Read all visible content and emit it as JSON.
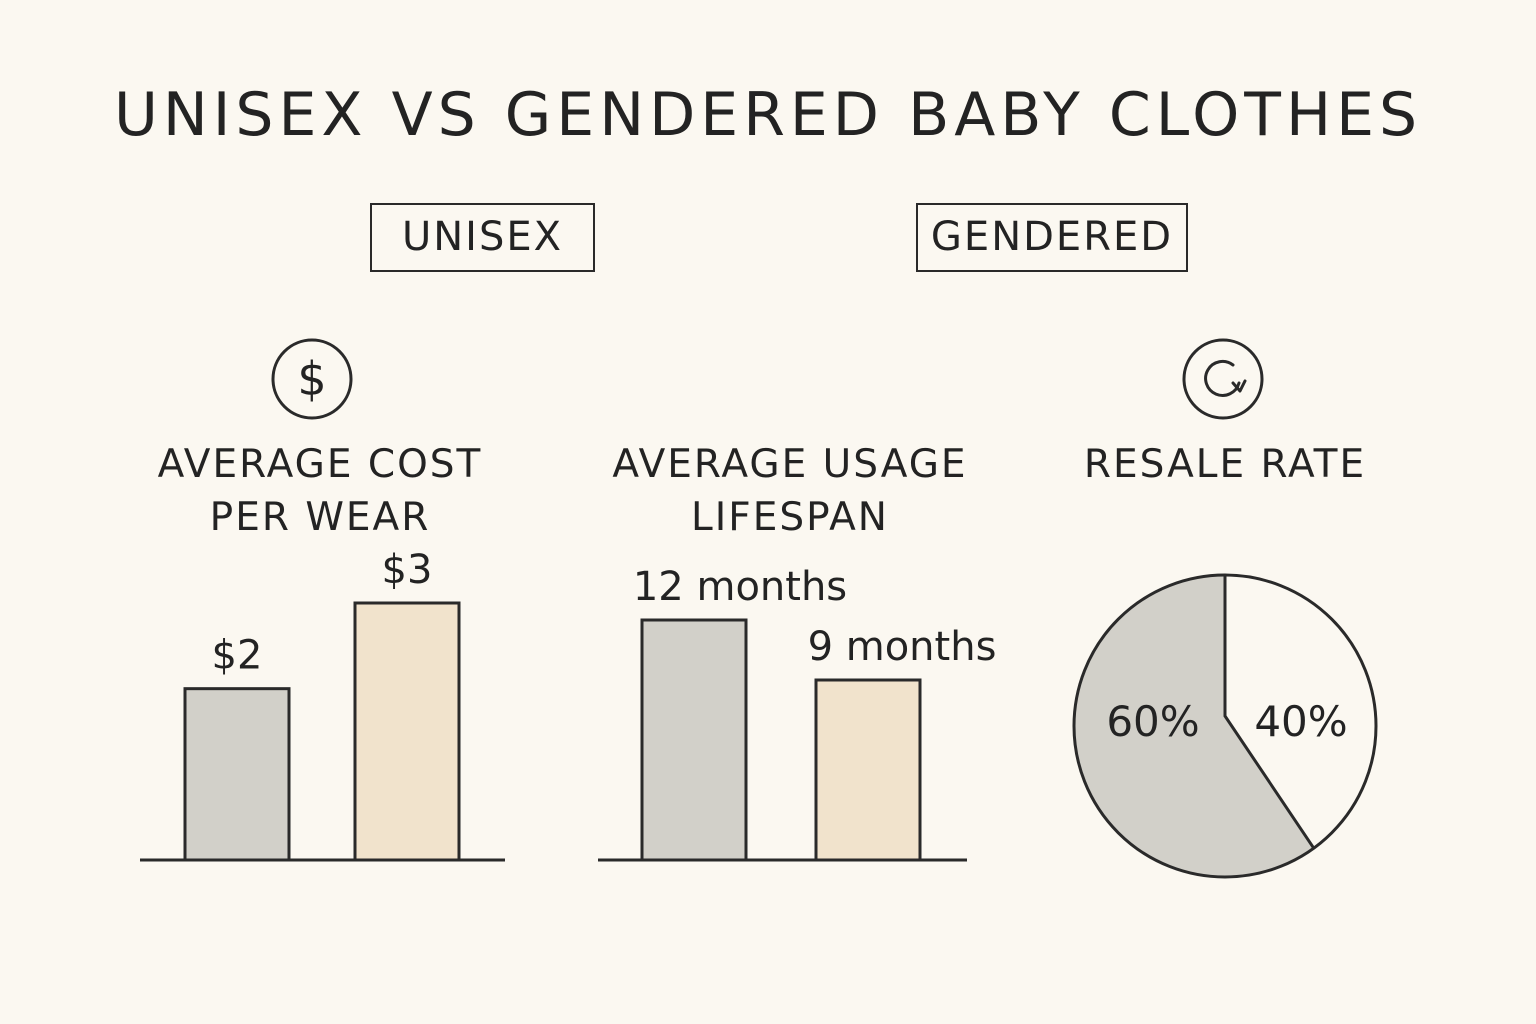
{
  "title": "UNISEX VS GENDERED BABY CLOTHES",
  "legend": {
    "unisex": "UNISEX",
    "gendered": "GENDERED"
  },
  "colors": {
    "unisex": "#d2d0c9",
    "gendered": "#f1e3cc",
    "background": "#fbf8f1",
    "stroke": "#2a2a2a"
  },
  "icons": {
    "cost": "dollar-icon",
    "resale": "refresh-icon"
  },
  "chart_data": [
    {
      "type": "bar",
      "title": "AVERAGE COST PER WEAR",
      "title_lines": [
        "AVERAGE COST",
        "PER WEAR"
      ],
      "categories": [
        "UNISEX",
        "GENDERED"
      ],
      "values": [
        2,
        3
      ],
      "value_labels": [
        "$2",
        "$3"
      ],
      "ylim": [
        0,
        3.5
      ]
    },
    {
      "type": "bar",
      "title": "AVERAGE USAGE LIFESPAN",
      "title_lines": [
        "AVERAGE USAGE",
        "LIFESPAN"
      ],
      "categories": [
        "UNISEX",
        "GENDERED"
      ],
      "values": [
        12,
        9
      ],
      "value_labels": [
        "12 months",
        "9 months"
      ],
      "ylim": [
        0,
        13
      ]
    },
    {
      "type": "pie",
      "title": "RESALE RATE",
      "title_lines": [
        "RESALE RATE"
      ],
      "categories": [
        "UNISEX",
        "GENDERED"
      ],
      "values": [
        60,
        40
      ],
      "value_labels": [
        "60%",
        "40%"
      ]
    }
  ]
}
